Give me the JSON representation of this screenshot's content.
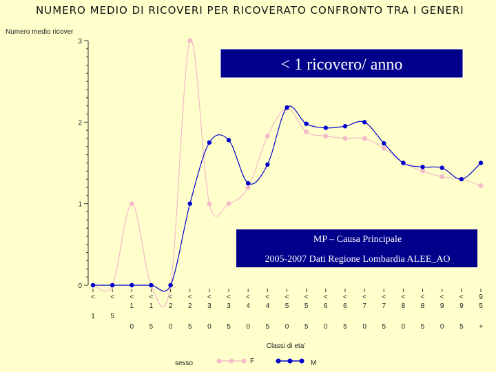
{
  "chart_data": {
    "type": "line",
    "title": "NUMERO MEDIO DI RICOVERI PER RICOVERATO  CONFRONTO TRA I GENERI",
    "ylabel": "Numero medio ricover",
    "xlabel": "Classi di eta'",
    "ylim": [
      0,
      3
    ],
    "y_ticks": [
      "0",
      "1",
      "2",
      "3"
    ],
    "categories": [
      [
        "<",
        "1"
      ],
      [
        "<",
        "5"
      ],
      [
        "<",
        "1",
        "0"
      ],
      [
        "<",
        "1",
        "5"
      ],
      [
        "<",
        "2",
        "0"
      ],
      [
        "<",
        "2",
        "5"
      ],
      [
        "<",
        "3",
        "0"
      ],
      [
        "<",
        "3",
        "5"
      ],
      [
        "<",
        "4",
        "0"
      ],
      [
        "<",
        "4",
        "5"
      ],
      [
        "<",
        "5",
        "0"
      ],
      [
        "<",
        "5",
        "5"
      ],
      [
        "<",
        "6",
        "0"
      ],
      [
        "<",
        "6",
        "5"
      ],
      [
        "<",
        "7",
        "0"
      ],
      [
        "<",
        "7",
        "5"
      ],
      [
        "<",
        "8",
        "0"
      ],
      [
        "<",
        "8",
        "5"
      ],
      [
        "<",
        "9",
        "0"
      ],
      [
        "<",
        "9",
        "5"
      ],
      [
        "9",
        "5",
        "+"
      ]
    ],
    "series": [
      {
        "name": "F",
        "color": "#f4bcc8",
        "values": [
          0,
          0,
          1.0,
          0,
          0,
          3.0,
          1.0,
          1.0,
          1.2,
          1.83,
          2.17,
          1.88,
          1.83,
          1.8,
          1.8,
          1.68,
          1.5,
          1.4,
          1.33,
          1.3,
          1.22
        ]
      },
      {
        "name": "M",
        "color": "#0000cc",
        "values": [
          0,
          0,
          0,
          0,
          0,
          1.0,
          1.75,
          1.78,
          1.25,
          1.48,
          2.18,
          1.98,
          1.93,
          1.95,
          2.0,
          1.74,
          1.5,
          1.45,
          1.44,
          1.3,
          1.5
        ]
      }
    ],
    "legend": {
      "label": "sesso",
      "position": "bottom",
      "entries": [
        "F",
        "M"
      ]
    },
    "grid": false
  },
  "annotations": {
    "top_banner": "< 1 ricovero/ anno",
    "info_line1": "MP – Causa Principale",
    "info_line2": "2005-2007 Dati Regione Lombardia ALEE_AO"
  },
  "colors": {
    "background": "#ffffcc",
    "banner_fill": "#00008b",
    "banner_text": "#ffffff",
    "info_text": "#ffffff"
  }
}
